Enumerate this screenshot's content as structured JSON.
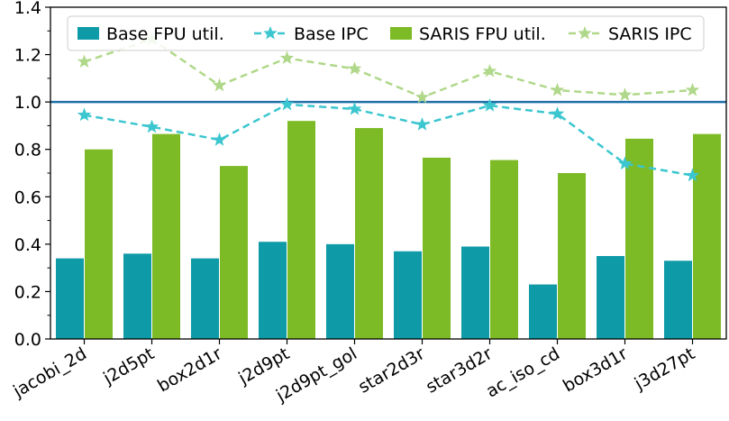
{
  "chart_data": {
    "type": "bar",
    "categories": [
      "jacobi_2d",
      "j2d5pt",
      "box2d1r",
      "j2d9pt",
      "j2d9pt_gol",
      "star2d3r",
      "star3d2r",
      "ac_iso_cd",
      "box3d1r",
      "j3d27pt"
    ],
    "series": [
      {
        "name": "Base FPU util.",
        "kind": "bar",
        "color": "#0e9aa7",
        "values": [
          0.34,
          0.36,
          0.34,
          0.41,
          0.4,
          0.37,
          0.39,
          0.23,
          0.35,
          0.33
        ]
      },
      {
        "name": "Base IPC",
        "kind": "line",
        "color": "#3cc6cf",
        "values": [
          0.945,
          0.895,
          0.84,
          0.99,
          0.97,
          0.905,
          0.985,
          0.95,
          0.74,
          0.69
        ]
      },
      {
        "name": "SARIS FPU util.",
        "kind": "bar",
        "color": "#7cbb26",
        "values": [
          0.8,
          0.865,
          0.73,
          0.92,
          0.89,
          0.765,
          0.755,
          0.7,
          0.845,
          0.865
        ]
      },
      {
        "name": "SARIS IPC",
        "kind": "line",
        "color": "#b0d88a",
        "values": [
          1.17,
          1.265,
          1.07,
          1.185,
          1.14,
          1.02,
          1.13,
          1.05,
          1.03,
          1.05
        ]
      }
    ],
    "reference_line": {
      "value": 1.0,
      "color": "#1f6fa8"
    },
    "ylim": [
      0,
      1.4
    ],
    "yticks": [
      0.0,
      0.2,
      0.4,
      0.6,
      0.8,
      1.0,
      1.2,
      1.4
    ],
    "ytick_labels": [
      "0.0",
      "0.2",
      "0.4",
      "0.6",
      "0.8",
      "1.0",
      "1.2",
      "1.4"
    ],
    "title": "",
    "xlabel": "",
    "ylabel": "",
    "legend_position": "top",
    "grid": false
  }
}
